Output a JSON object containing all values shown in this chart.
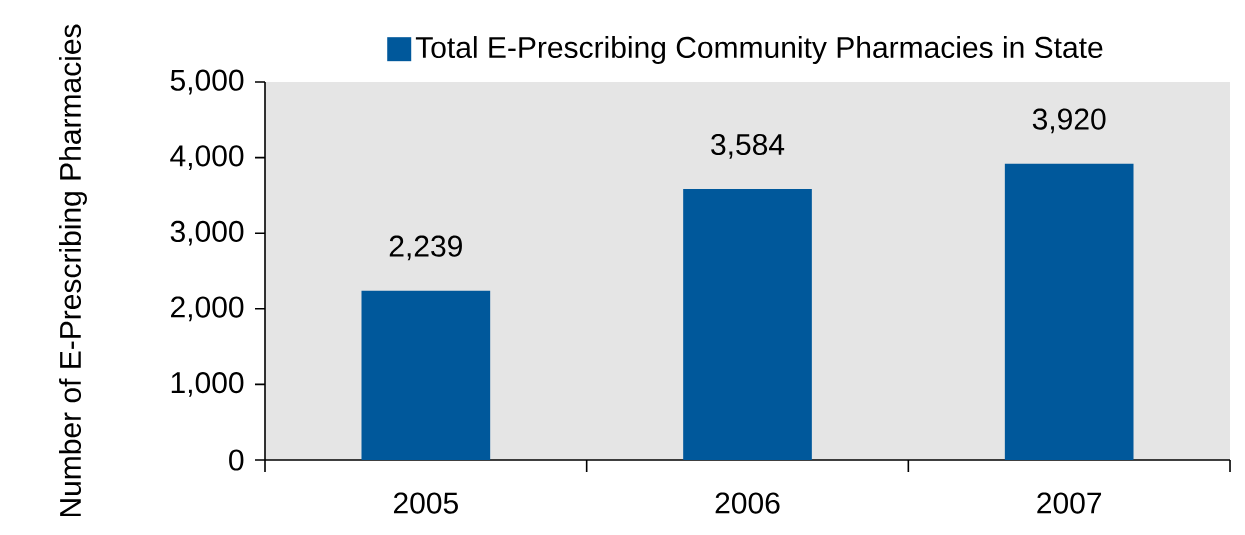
{
  "chart_data": {
    "type": "bar",
    "ylabel": "Number of E-Prescribing Pharmacies",
    "categories": [
      "2005",
      "2006",
      "2007"
    ],
    "series": [
      {
        "name": "Total E-Prescribing Community Pharmacies in State",
        "color": "#00589b",
        "values": [
          2239,
          3584,
          3920
        ],
        "value_labels": [
          "2,239",
          "3,584",
          "3,920"
        ]
      }
    ],
    "ylim": [
      0,
      5000
    ],
    "yticks": [
      {
        "value": 0,
        "label": "0"
      },
      {
        "value": 1000,
        "label": "1,000"
      },
      {
        "value": 2000,
        "label": "2,000"
      },
      {
        "value": 3000,
        "label": "3,000"
      },
      {
        "value": 4000,
        "label": "4,000"
      },
      {
        "value": 5000,
        "label": "5,000"
      }
    ],
    "grid": false,
    "legend": "top"
  }
}
